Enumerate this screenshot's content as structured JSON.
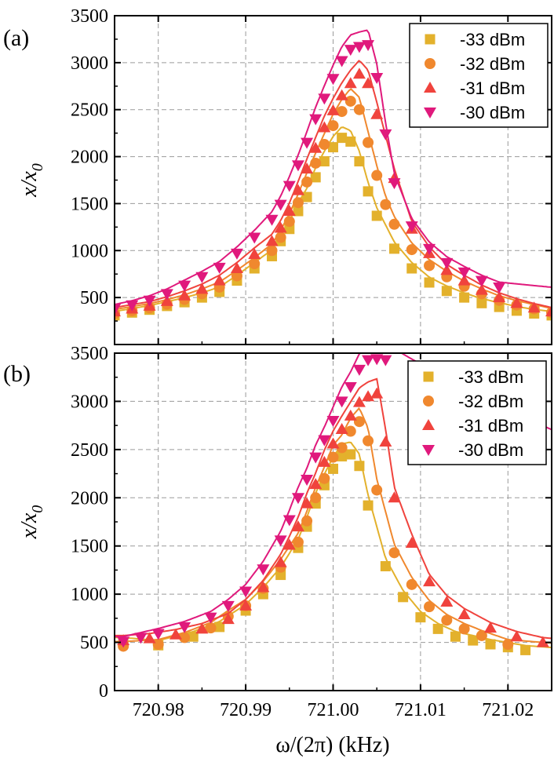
{
  "xlabel": "ω/(2π) (kHz)",
  "colors": {
    "-33 dBm": "#e3b12c",
    "-32 dBm": "#f0882e",
    "-31 dBm": "#f0433d",
    "-30 dBm": "#e0197c"
  },
  "chart_data": [
    {
      "type": "scatter",
      "panel_label": "(a)",
      "ylabel": "x/x0",
      "ylabel_main": "x/x",
      "ylabel_sub": "0",
      "xlabel": "",
      "xlim": [
        720.975,
        721.025
      ],
      "ylim": [
        0,
        3500
      ],
      "yticks": [
        500,
        1000,
        1500,
        2000,
        2500,
        3000,
        3500
      ],
      "ytick_labels": [
        "500",
        "1000",
        "1500",
        "2000",
        "2500",
        "3000",
        "3500"
      ],
      "grid": true,
      "legend_position": "top-right",
      "series": [
        {
          "name": "-33 dBm",
          "marker": "square",
          "color": "#e3b12c",
          "x": [
            720.975,
            720.977,
            720.979,
            720.981,
            720.983,
            720.985,
            720.987,
            720.989,
            720.991,
            720.993,
            720.994,
            720.995,
            720.996,
            720.997,
            720.998,
            720.999,
            721.0,
            721.001,
            721.002,
            721.003,
            721.004,
            721.005,
            721.007,
            721.009,
            721.011,
            721.013,
            721.015,
            721.017,
            721.019,
            721.021,
            721.023,
            721.025
          ],
          "y": [
            310,
            340,
            370,
            410,
            450,
            500,
            560,
            680,
            810,
            940,
            1100,
            1230,
            1420,
            1570,
            1780,
            1950,
            2100,
            2200,
            2160,
            1950,
            1630,
            1370,
            1020,
            810,
            660,
            570,
            500,
            440,
            400,
            360,
            330,
            310
          ]
        },
        {
          "name": "-32 dBm",
          "marker": "circle",
          "color": "#f0882e",
          "x": [
            720.975,
            720.977,
            720.979,
            720.981,
            720.983,
            720.985,
            720.987,
            720.989,
            720.991,
            720.993,
            720.994,
            720.995,
            720.996,
            720.997,
            720.998,
            720.999,
            721.0,
            721.001,
            721.002,
            721.003,
            721.004,
            721.005,
            721.006,
            721.007,
            721.009,
            721.011,
            721.013,
            721.015,
            721.017,
            721.019,
            721.021,
            721.023,
            721.025
          ],
          "y": [
            330,
            360,
            390,
            430,
            480,
            540,
            610,
            730,
            860,
            1000,
            1140,
            1310,
            1510,
            1730,
            1930,
            2130,
            2330,
            2480,
            2590,
            2500,
            2150,
            1800,
            1490,
            1280,
            1010,
            840,
            720,
            620,
            540,
            470,
            420,
            380,
            340
          ]
        },
        {
          "name": "-31 dBm",
          "marker": "triangle-up",
          "color": "#f0433d",
          "x": [
            720.975,
            720.977,
            720.979,
            720.981,
            720.983,
            720.985,
            720.987,
            720.989,
            720.991,
            720.993,
            720.994,
            720.995,
            720.996,
            720.997,
            720.998,
            720.999,
            721.0,
            721.001,
            721.002,
            721.003,
            721.004,
            721.005,
            721.007,
            721.009,
            721.011,
            721.013,
            721.015,
            721.017,
            721.019,
            721.021,
            721.023,
            721.025
          ],
          "y": [
            350,
            380,
            410,
            460,
            520,
            590,
            680,
            810,
            960,
            1100,
            1240,
            1420,
            1640,
            1870,
            2090,
            2310,
            2490,
            2650,
            2780,
            2880,
            2780,
            2450,
            1770,
            1230,
            970,
            790,
            680,
            580,
            500,
            440,
            390,
            350
          ]
        },
        {
          "name": "-30 dBm",
          "marker": "triangle-down",
          "color": "#e0197c",
          "x": [
            720.975,
            720.977,
            720.979,
            720.981,
            720.983,
            720.985,
            720.987,
            720.989,
            720.991,
            720.993,
            720.994,
            720.995,
            720.996,
            720.997,
            720.998,
            720.999,
            721.0,
            721.001,
            721.002,
            721.003,
            721.004,
            721.005,
            721.006,
            721.007,
            721.009,
            721.011,
            721.013,
            721.015,
            721.017,
            721.019
          ],
          "y": [
            380,
            420,
            470,
            540,
            630,
            720,
            820,
            970,
            1140,
            1330,
            1490,
            1690,
            1910,
            2150,
            2400,
            2620,
            2830,
            3020,
            3140,
            3170,
            3190,
            2840,
            2240,
            1720,
            1260,
            1020,
            870,
            770,
            680,
            610
          ]
        }
      ]
    },
    {
      "type": "scatter",
      "panel_label": "(b)",
      "ylabel": "x/x0",
      "ylabel_main": "x/x",
      "ylabel_sub": "0",
      "xlabel": "ω/(2π) (kHz)",
      "xlim": [
        720.975,
        721.025
      ],
      "ylim": [
        0,
        3500
      ],
      "xticks": [
        720.98,
        720.99,
        721.0,
        721.01,
        721.02
      ],
      "xtick_labels": [
        "720.98",
        "720.99",
        "721.00",
        "721.01",
        "721.02"
      ],
      "yticks": [
        0,
        500,
        1000,
        1500,
        2000,
        2500,
        3000,
        3500
      ],
      "ytick_labels": [
        "0",
        "500",
        "1000",
        "1500",
        "2000",
        "2500",
        "3000",
        "3500"
      ],
      "grid": true,
      "legend_position": "top-right",
      "series": [
        {
          "name": "-33 dBm",
          "marker": "square",
          "color": "#e3b12c",
          "x": [
            720.976,
            720.98,
            720.984,
            720.987,
            720.99,
            720.992,
            720.994,
            720.996,
            720.997,
            720.998,
            720.999,
            721.0,
            721.001,
            721.002,
            721.003,
            721.004,
            721.006,
            721.008,
            721.01,
            721.012,
            721.014,
            721.016,
            721.018,
            721.02,
            721.022
          ],
          "y": [
            500,
            470,
            560,
            660,
            830,
            1000,
            1200,
            1480,
            1700,
            1940,
            2130,
            2300,
            2430,
            2450,
            2330,
            1920,
            1290,
            970,
            760,
            640,
            560,
            520,
            480,
            450,
            420
          ]
        },
        {
          "name": "-32 dBm",
          "marker": "circle",
          "color": "#f0882e",
          "x": [
            720.976,
            720.98,
            720.983,
            720.986,
            720.988,
            720.99,
            720.992,
            720.994,
            720.996,
            720.997,
            720.998,
            720.999,
            721.0,
            721.001,
            721.002,
            721.003,
            721.004,
            721.005,
            721.007,
            721.009,
            721.011,
            721.013,
            721.015,
            721.017,
            721.02
          ],
          "y": [
            460,
            480,
            550,
            650,
            770,
            880,
            1060,
            1280,
            1540,
            1760,
            2000,
            2200,
            2420,
            2520,
            2690,
            2790,
            2590,
            2080,
            1430,
            1100,
            870,
            730,
            640,
            570,
            480
          ]
        },
        {
          "name": "-31 dBm",
          "marker": "triangle-up",
          "color": "#f0433d",
          "x": [
            720.976,
            720.979,
            720.982,
            720.985,
            720.988,
            720.99,
            720.992,
            720.994,
            720.995,
            720.996,
            720.997,
            720.998,
            720.999,
            721.0,
            721.001,
            721.002,
            721.003,
            721.004,
            721.005,
            721.006,
            721.007,
            721.009,
            721.011,
            721.013,
            721.015,
            721.018,
            721.021,
            721.024
          ],
          "y": [
            520,
            540,
            580,
            640,
            740,
            880,
            1070,
            1330,
            1510,
            1700,
            1940,
            2140,
            2370,
            2560,
            2710,
            2850,
            2990,
            3050,
            3080,
            2580,
            2000,
            1530,
            1130,
            920,
            790,
            650,
            560,
            500
          ]
        },
        {
          "name": "-30 dBm",
          "marker": "triangle-down",
          "color": "#e0197c",
          "x": [
            720.976,
            720.978,
            720.98,
            720.983,
            720.986,
            720.988,
            720.99,
            720.992,
            720.994,
            720.995,
            720.996,
            720.997,
            720.998,
            720.999,
            721.0,
            721.001,
            721.002,
            721.003,
            721.004,
            721.005,
            721.006
          ],
          "y": [
            510,
            550,
            590,
            660,
            760,
            880,
            1030,
            1260,
            1560,
            1770,
            2000,
            2190,
            2420,
            2600,
            2800,
            3000,
            3150,
            3330,
            3430,
            3440,
            3430
          ]
        }
      ]
    }
  ]
}
